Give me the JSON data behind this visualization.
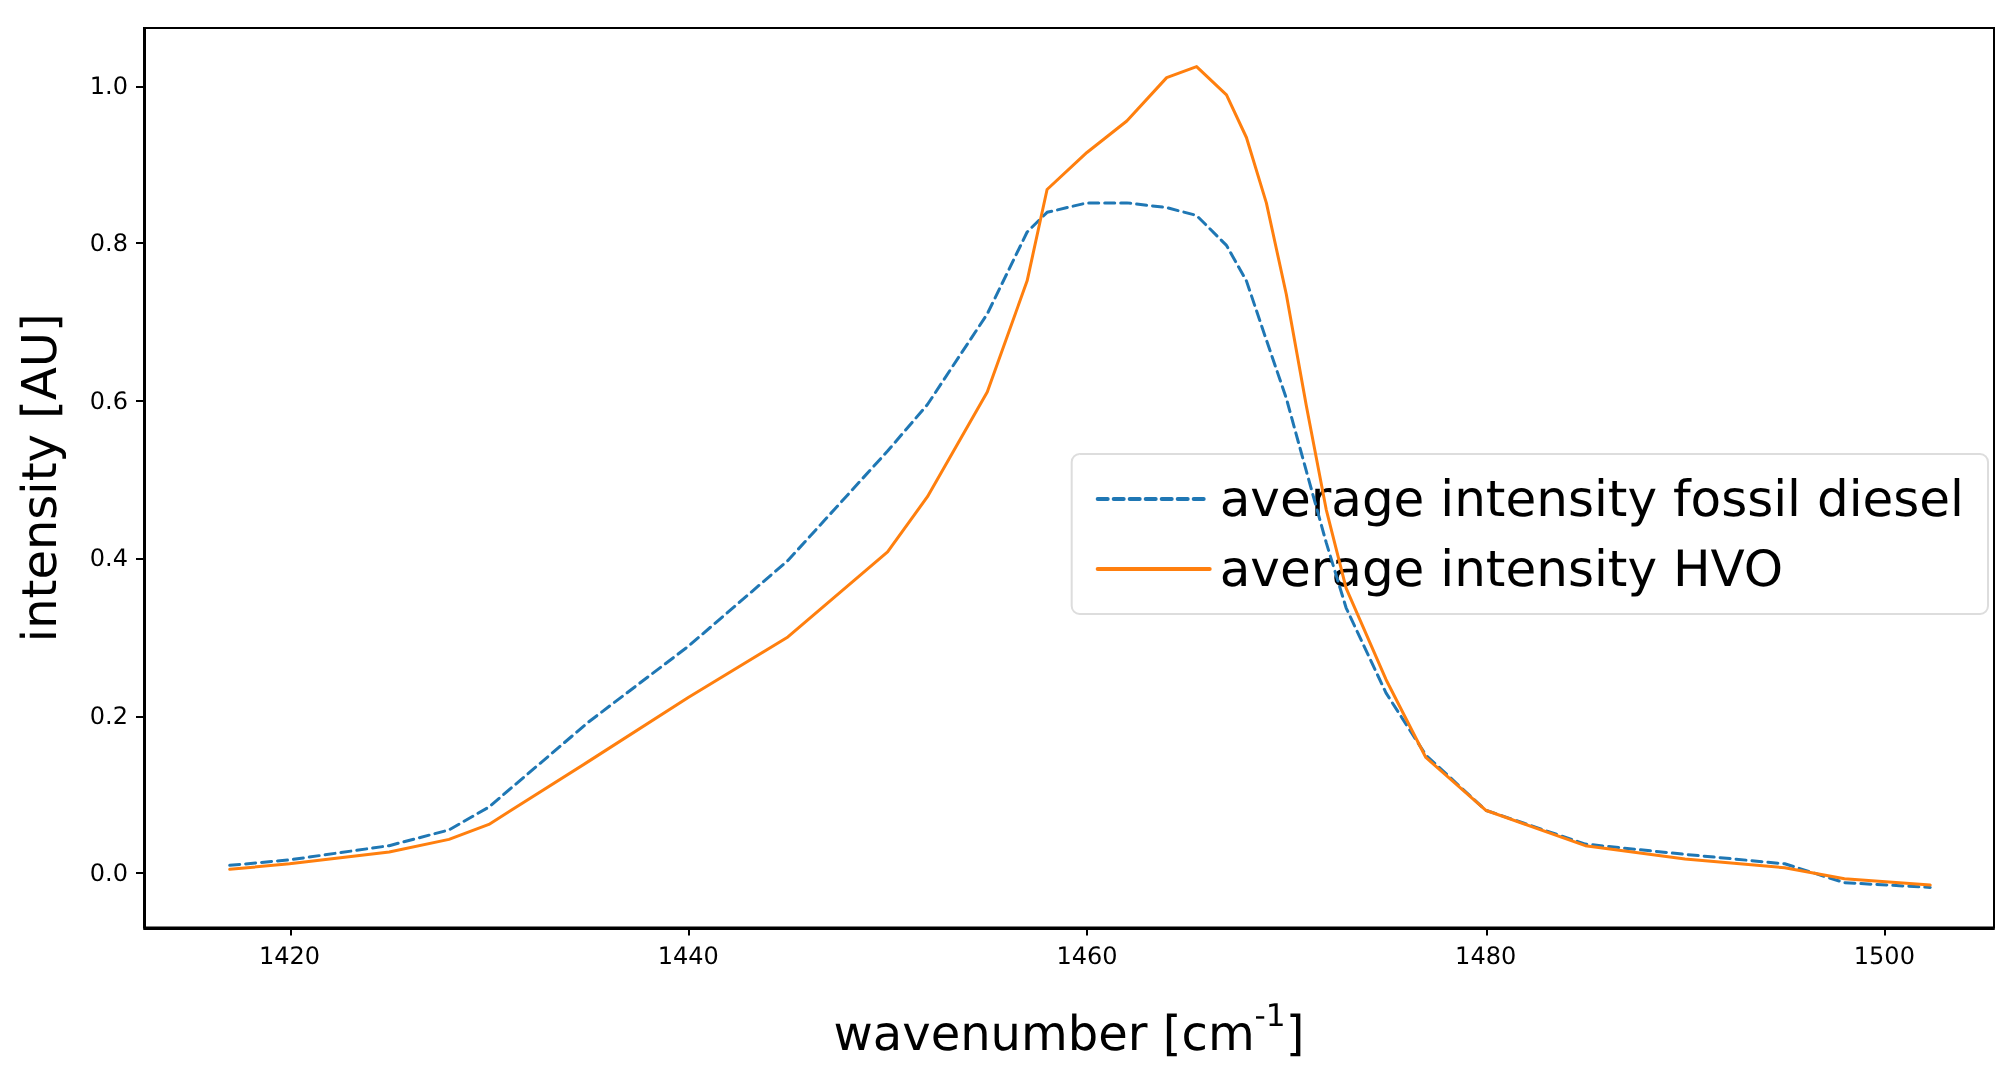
{
  "chart_data": {
    "type": "line",
    "xlabel": "wavenumber [cm$^{-1}$]",
    "ylabel": "intensity [AU]",
    "x": [
      1417,
      1420,
      1425,
      1428,
      1430,
      1435,
      1440,
      1445,
      1450,
      1452,
      1455,
      1457,
      1458,
      1460,
      1462,
      1464,
      1465.5,
      1467,
      1468,
      1469,
      1470,
      1471,
      1472,
      1473,
      1475,
      1477,
      1480,
      1485,
      1490,
      1495,
      1498,
      1502.3
    ],
    "series": [
      {
        "name": "average intensity fossil diesel",
        "color": "#1f77b4",
        "line_style": "dashed",
        "values": [
          0.01,
          0.017,
          0.035,
          0.055,
          0.084,
          0.192,
          0.288,
          0.397,
          0.536,
          0.595,
          0.71,
          0.814,
          0.839,
          0.851,
          0.851,
          0.845,
          0.835,
          0.797,
          0.752,
          0.677,
          0.603,
          0.511,
          0.42,
          0.337,
          0.229,
          0.15,
          0.08,
          0.037,
          0.024,
          0.012,
          -0.012,
          -0.018
        ]
      },
      {
        "name": "average intensity HVO",
        "color": "#ff7f0e",
        "line_style": "solid",
        "values": [
          0.005,
          0.012,
          0.027,
          0.043,
          0.062,
          0.142,
          0.223,
          0.3,
          0.408,
          0.478,
          0.611,
          0.752,
          0.868,
          0.915,
          0.955,
          1.01,
          1.024,
          0.988,
          0.934,
          0.851,
          0.735,
          0.594,
          0.462,
          0.362,
          0.246,
          0.147,
          0.08,
          0.035,
          0.018,
          0.007,
          -0.007,
          -0.015
        ]
      }
    ],
    "xlim": [
      1412.7,
      1505.5
    ],
    "xticks": [
      1420,
      1440,
      1460,
      1480,
      1500
    ],
    "ylim": [
      -0.069,
      1.073
    ],
    "yticks": [
      {
        "value": 0,
        "label": "0.0"
      },
      {
        "value": 0.2,
        "label": "0.2"
      },
      {
        "value": 0.4,
        "label": "0.4"
      },
      {
        "value": 0.6,
        "label": "0.6"
      },
      {
        "value": 0.8,
        "label": "0.8"
      },
      {
        "value": 1,
        "label": "1.0"
      }
    ],
    "grid": false,
    "legend": "right",
    "marker": "none"
  }
}
